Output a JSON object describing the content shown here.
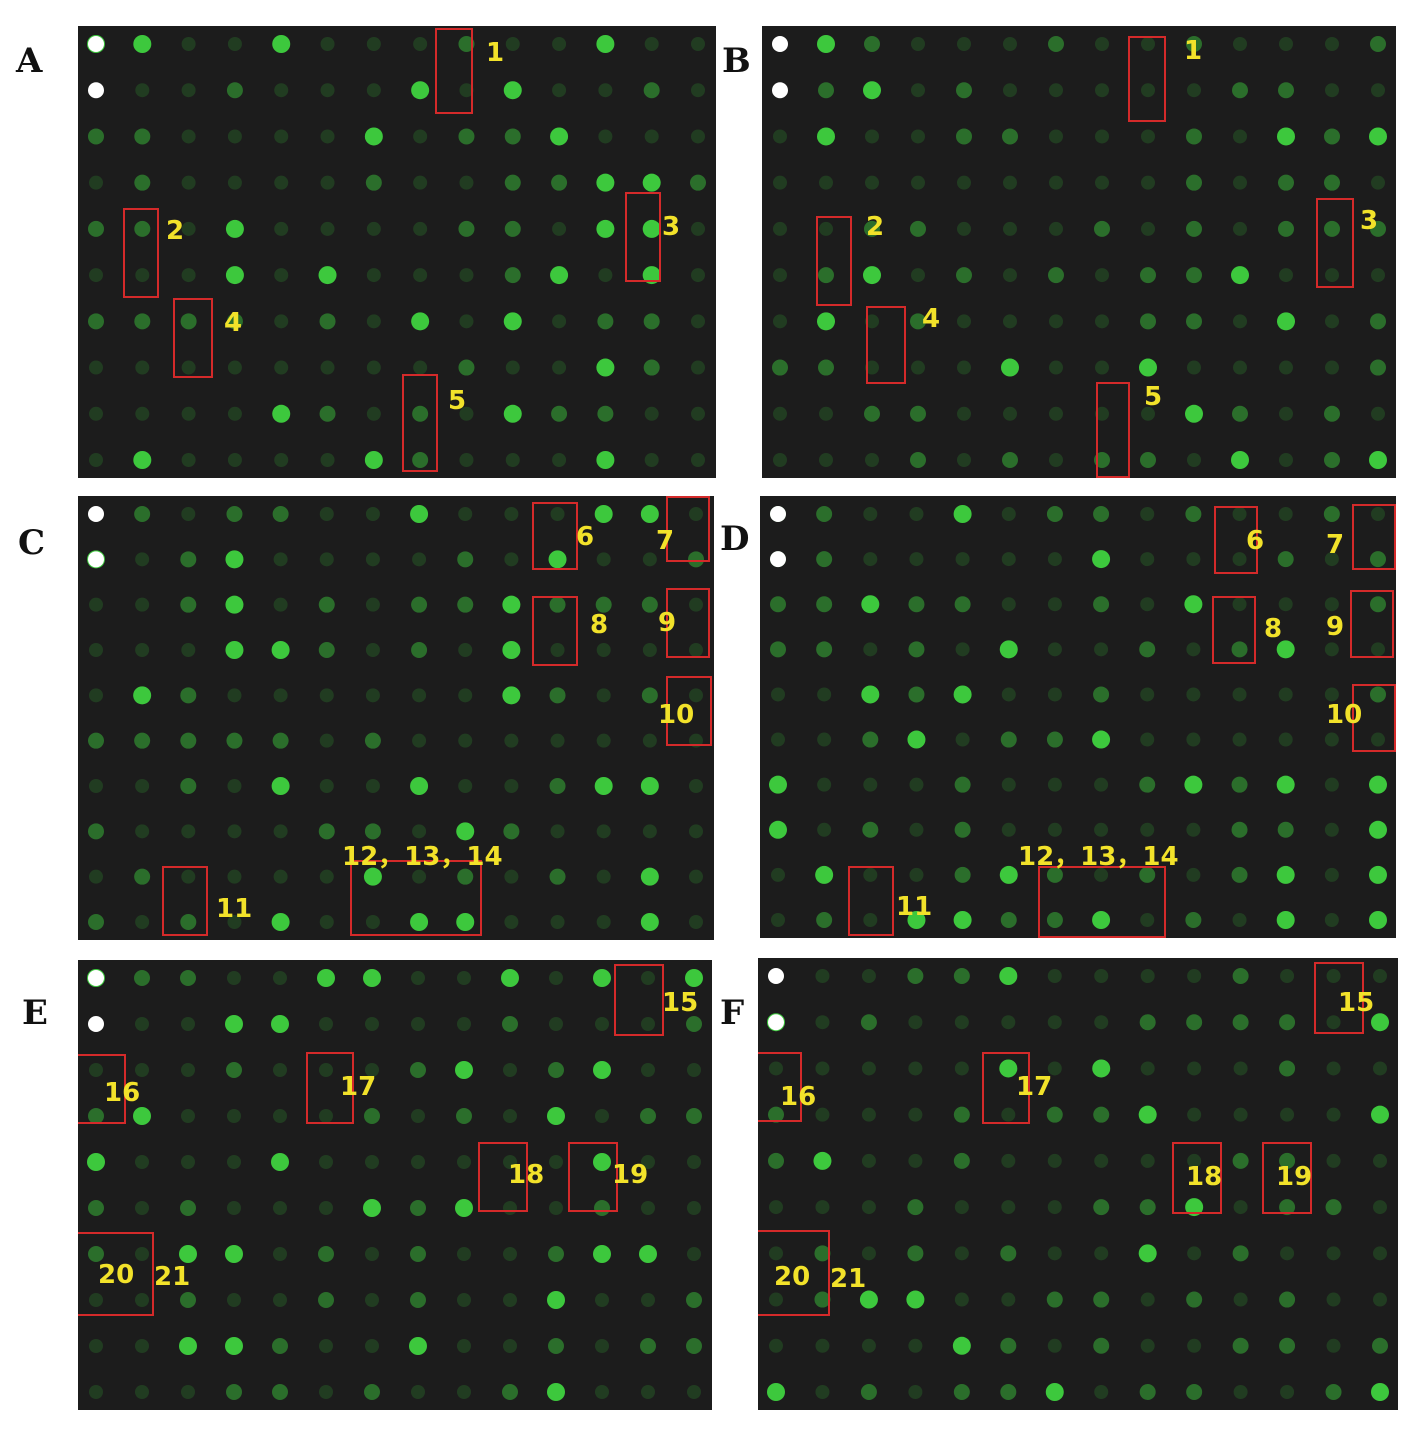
{
  "colors": {
    "background": "#1c1c1c",
    "spot": "#3fd23f",
    "box": "#d42a2a",
    "label": "#f2e22a"
  },
  "panels": [
    {
      "letter": "A",
      "labels": [
        "1",
        "2",
        "3",
        "4",
        "5"
      ]
    },
    {
      "letter": "B",
      "labels": [
        "1",
        "2",
        "3",
        "4",
        "5"
      ]
    },
    {
      "letter": "C",
      "labels": [
        "6",
        "7",
        "8",
        "9",
        "10",
        "11",
        "12，13，14"
      ]
    },
    {
      "letter": "D",
      "labels": [
        "6",
        "7",
        "8",
        "9",
        "10",
        "11",
        "12，13，14"
      ]
    },
    {
      "letter": "E",
      "labels": [
        "15",
        "16",
        "17",
        "18",
        "19",
        "20",
        "21"
      ]
    },
    {
      "letter": "F",
      "labels": [
        "15",
        "16",
        "17",
        "18",
        "19",
        "20",
        "21"
      ]
    }
  ]
}
